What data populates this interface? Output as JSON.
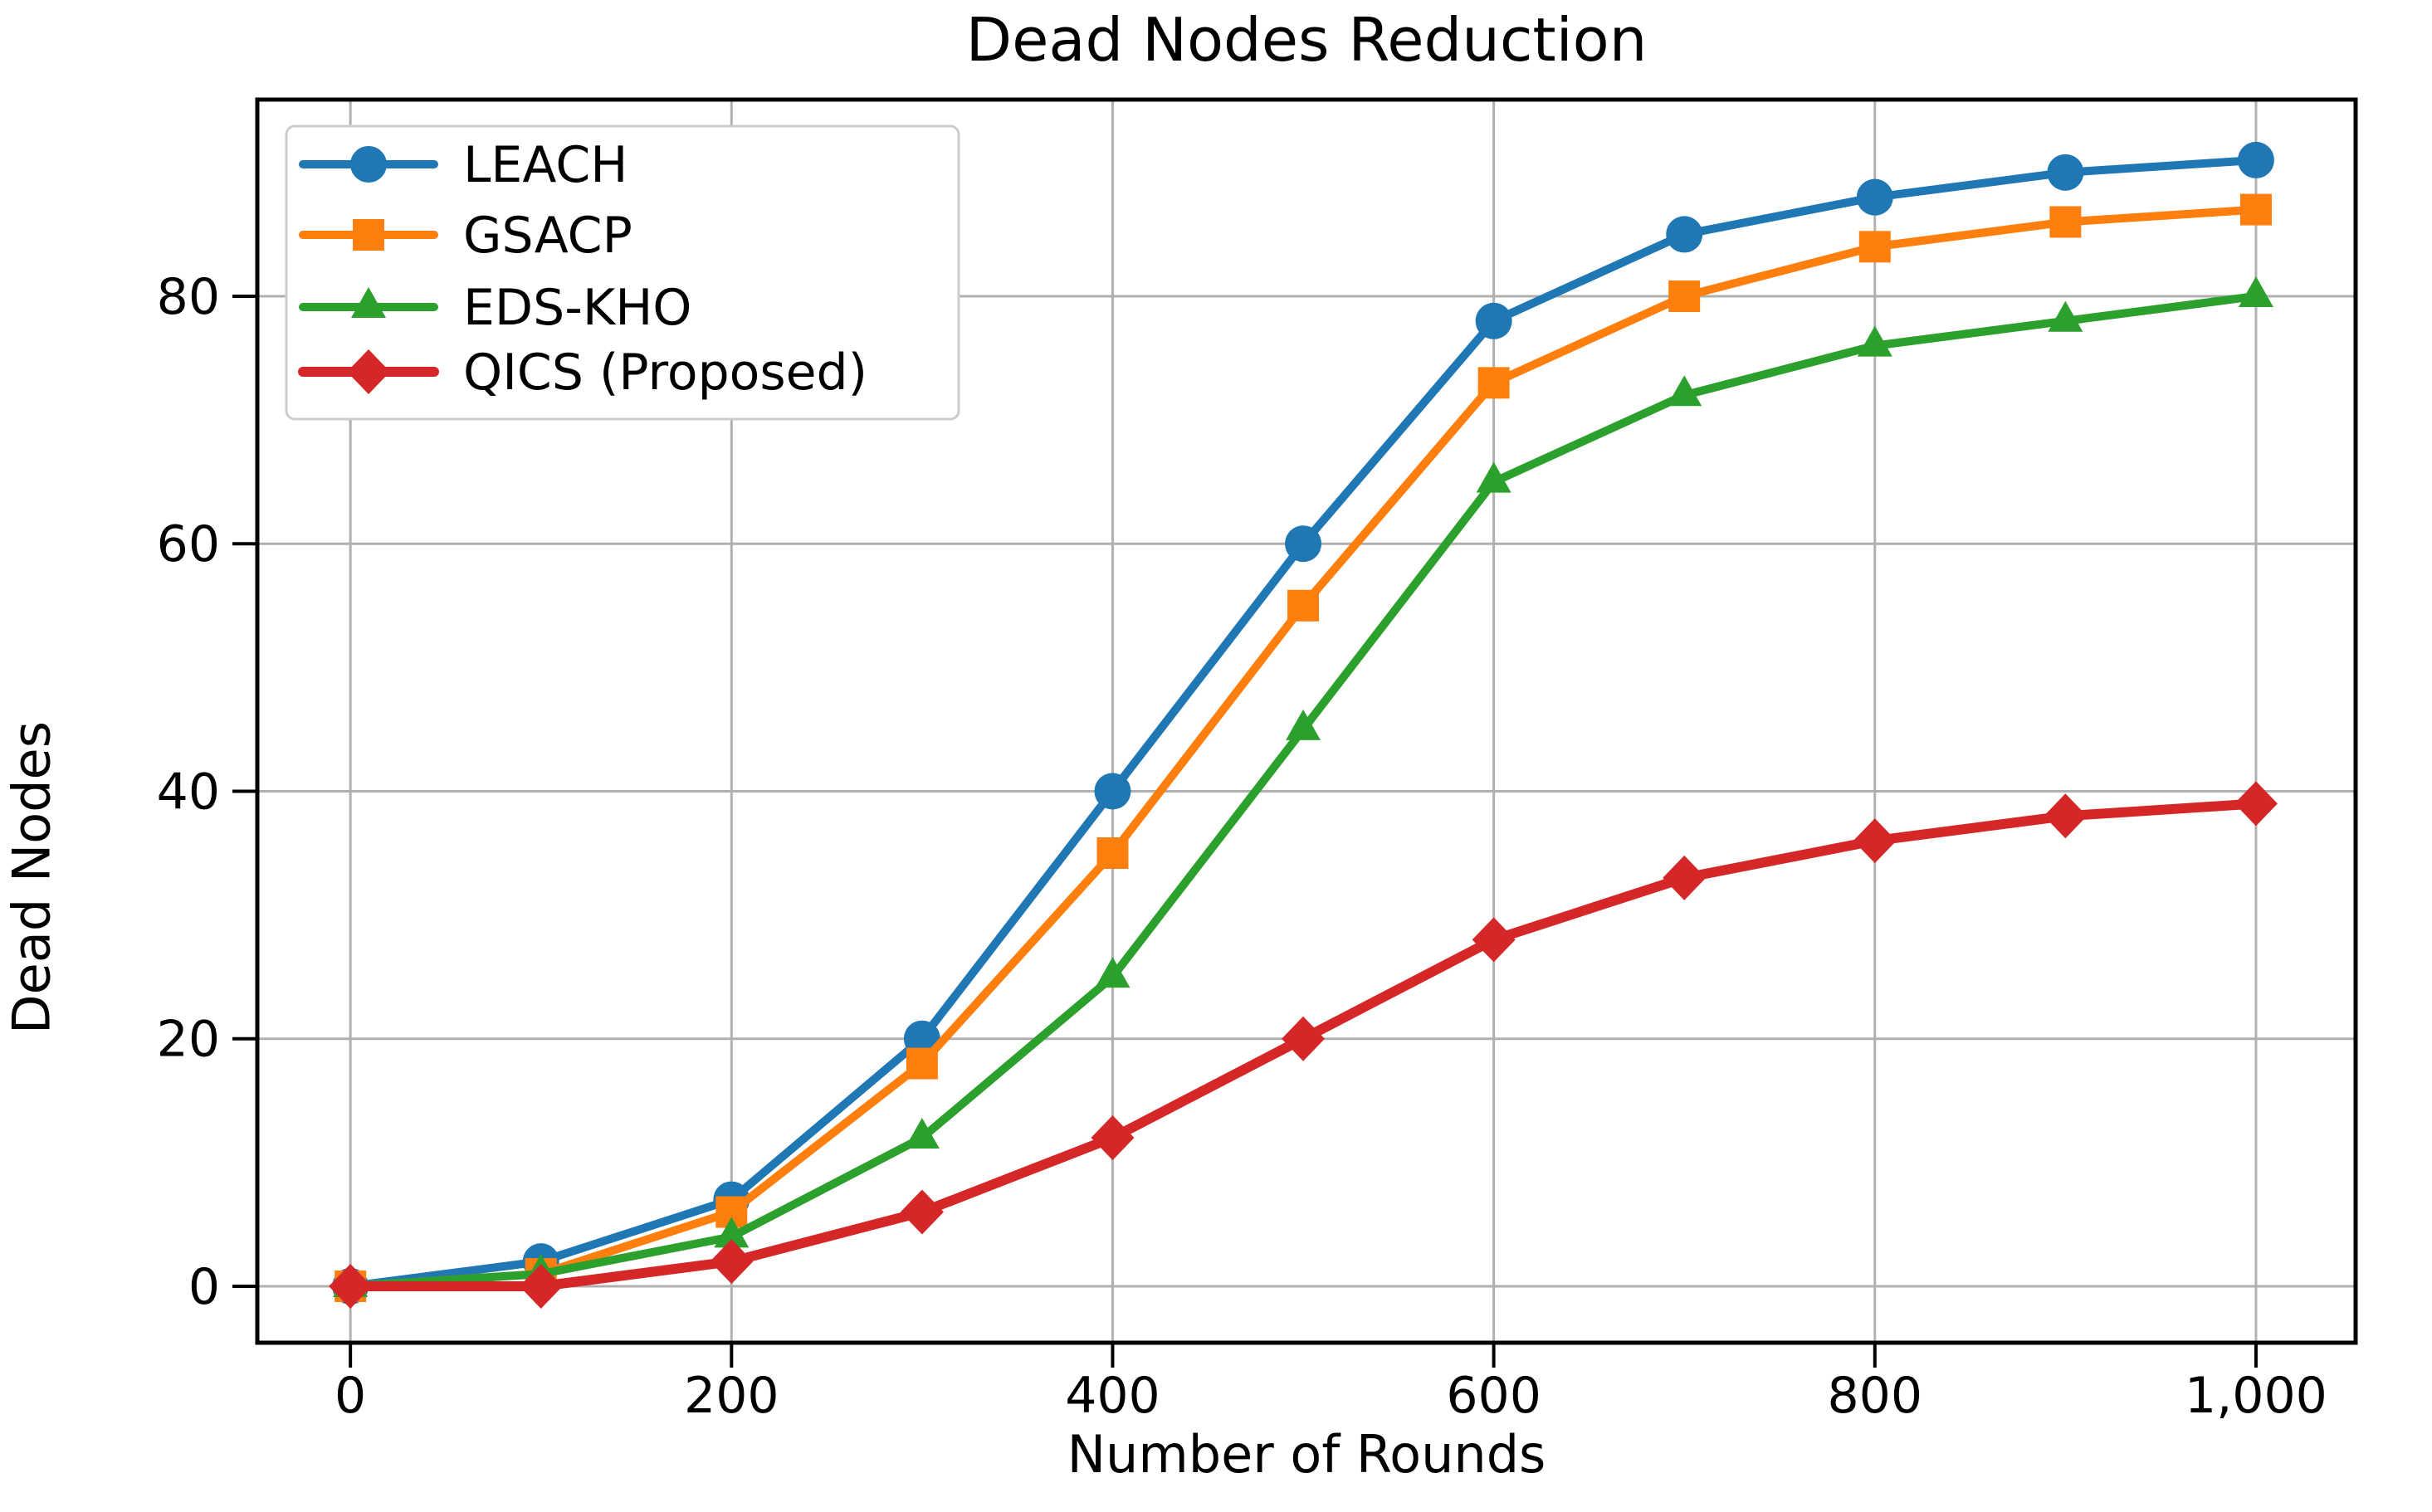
{
  "chart_data": {
    "type": "line",
    "title": "Dead Nodes Reduction",
    "xlabel": "Number of Rounds",
    "ylabel": "Dead Nodes",
    "x": [
      0,
      100,
      200,
      300,
      400,
      500,
      600,
      700,
      800,
      900,
      1000
    ],
    "series": [
      {
        "name": "LEACH",
        "color": "#1f77b4",
        "marker": "circle",
        "linewidth": 10,
        "values": [
          0,
          2,
          7,
          20,
          40,
          60,
          78,
          85,
          88,
          90,
          91
        ]
      },
      {
        "name": "GSACP",
        "color": "#ff7f0e",
        "marker": "square",
        "linewidth": 10,
        "values": [
          0,
          1,
          6,
          18,
          35,
          55,
          73,
          80,
          84,
          86,
          87
        ]
      },
      {
        "name": "EDS-KHO",
        "color": "#2ca02c",
        "marker": "triangle",
        "linewidth": 10,
        "values": [
          0,
          1,
          4,
          12,
          25,
          45,
          65,
          72,
          76,
          78,
          80
        ]
      },
      {
        "name": "QICS (Proposed)",
        "color": "#d62728",
        "marker": "diamond",
        "linewidth": 12,
        "values": [
          0,
          0,
          2,
          6,
          12,
          20,
          28,
          33,
          36,
          38,
          39
        ]
      }
    ],
    "xticks": {
      "values": [
        0,
        200,
        400,
        600,
        800,
        1000
      ],
      "labels": [
        "0",
        "200",
        "400",
        "600",
        "800",
        "1,000"
      ]
    },
    "yticks": {
      "values": [
        0,
        20,
        40,
        60,
        80
      ],
      "labels": [
        "0",
        "20",
        "40",
        "60",
        "80"
      ]
    },
    "xlim": [
      -48.85,
      1052.3
    ],
    "ylim": [
      -4.56,
      95.89
    ],
    "grid": true,
    "legend_position": "upper left",
    "colors": {
      "grid": "#b0b0b0",
      "spine": "#000000",
      "tick_text": "#000000",
      "legend_border": "#cccccc",
      "legend_background": "#ffffff",
      "background": "#ffffff"
    }
  }
}
